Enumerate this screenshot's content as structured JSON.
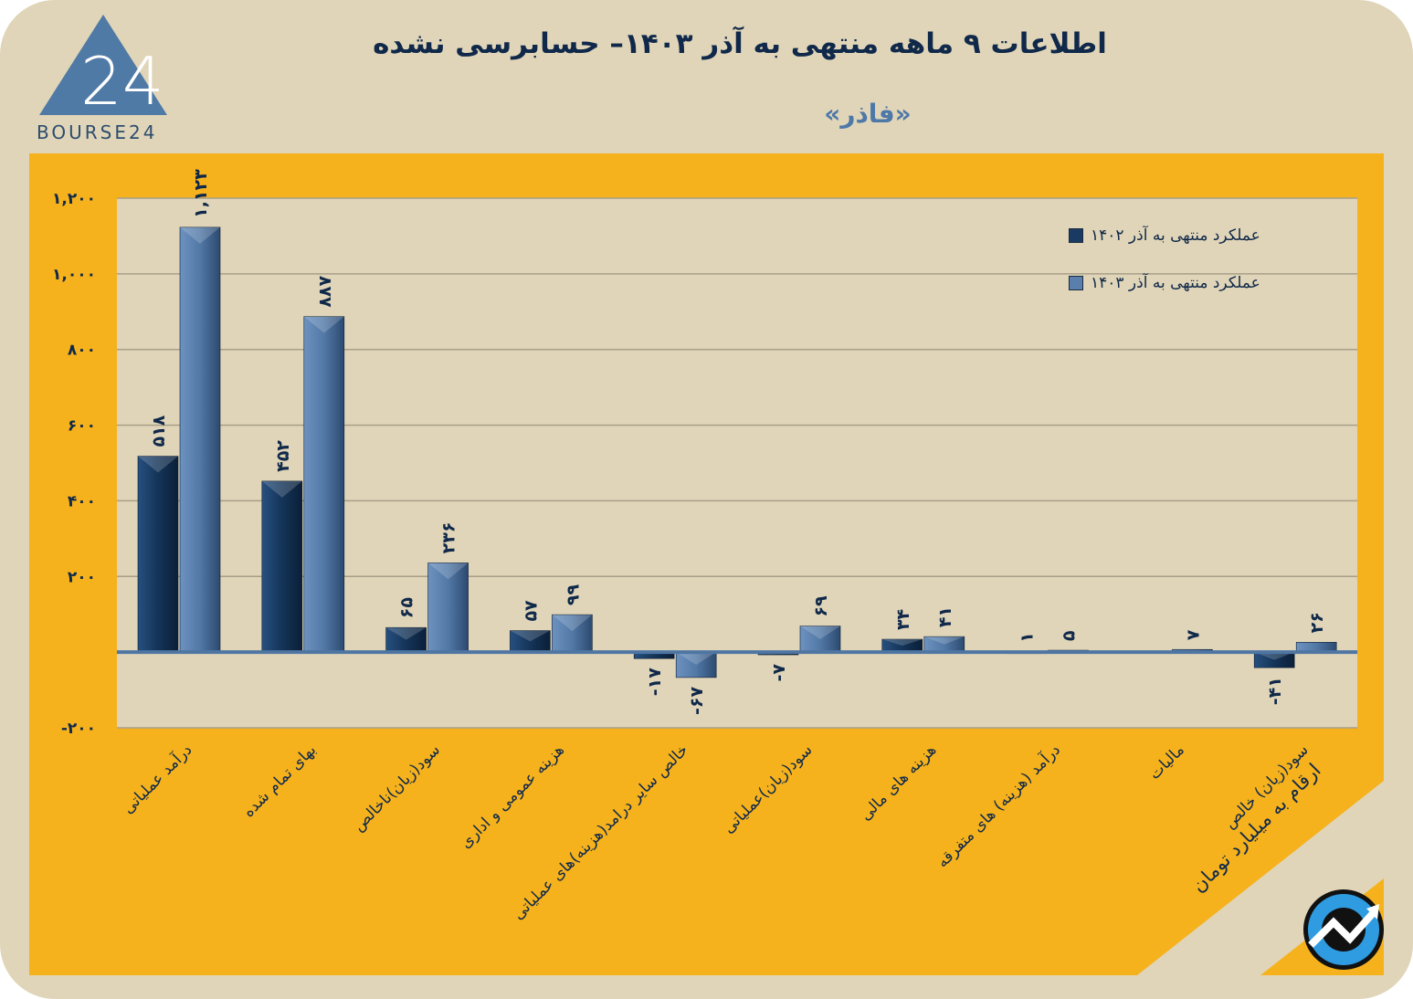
{
  "header": {
    "title": "اطلاعات ۹ ماهه منتهی به آذر ۱۴۰۳– حسابرسی نشده",
    "subtitle": "«فاذر»",
    "logo_text": "BOURSE24"
  },
  "unit_note": "ارقام به میلیارد تومان",
  "colors": {
    "background": "#e0d5b8",
    "panel": "#f6b21c",
    "plot": "#e0d5b8",
    "series_1402": "#1b3a63",
    "series_1403": "#5b7fac",
    "title": "#10294a"
  },
  "chart_data": {
    "type": "bar",
    "categories": [
      "درآمد عملیاتی",
      "بهای تمام شده",
      "سود(زیان)ناخالص",
      "هزینه عمومی و اداری",
      "خالص سایر درامد(هزینه)های عملیاتی",
      "سود(زیان)عملیاتی",
      "هزینه های مالی",
      "درآمد (هزینه) های متفرقه",
      "مالیات",
      "سود(زیان) خالص"
    ],
    "series": [
      {
        "name": "عملکرد منتهی به آذر ۱۴۰۲",
        "values": [
          518,
          452,
          65,
          57,
          -17,
          -7,
          34,
          1,
          0,
          -41
        ]
      },
      {
        "name": "عملکرد منتهی به آذر ۱۴۰۳",
        "values": [
          1123,
          887,
          236,
          99,
          -67,
          69,
          41,
          5,
          7,
          26
        ]
      }
    ],
    "ylim": [
      -200,
      1200
    ],
    "yticks": [
      -200,
      200,
      400,
      600,
      800,
      1000,
      1200
    ],
    "ytick_labels": [
      "-۲۰۰",
      "۲۰۰",
      "۴۰۰",
      "۶۰۰",
      "۸۰۰",
      "۱,۰۰۰",
      "۱,۲۰۰"
    ],
    "grid": true,
    "legend": "top-right",
    "xlabel": "",
    "ylabel": ""
  }
}
